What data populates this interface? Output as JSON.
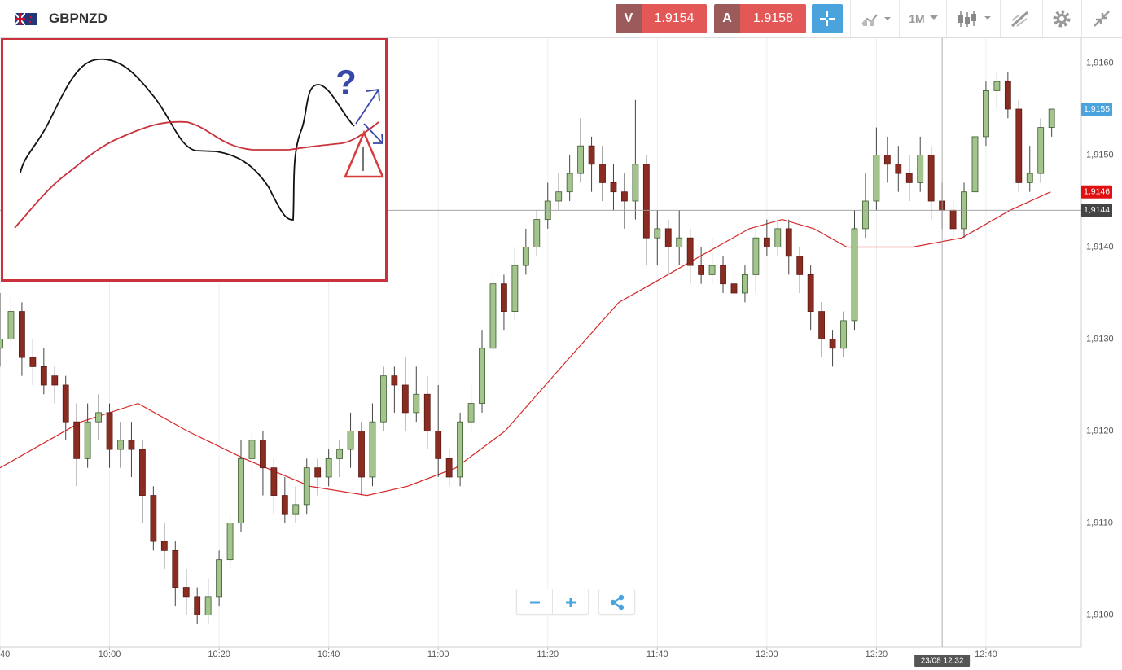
{
  "toolbar": {
    "symbol": "GBPNZD",
    "sell_label": "V",
    "sell_price": 1.9154,
    "buy_label": "A",
    "buy_price": 1.9158,
    "timeframe": "1M"
  },
  "annotation": {
    "question": "?"
  },
  "chart_data": {
    "type": "candlestick",
    "xlim": [
      0,
      98.7
    ],
    "ylim": [
      1.90965,
      1.91627
    ],
    "xticks": [
      {
        "value": 0,
        "label": "40"
      },
      {
        "value": 10,
        "label": "10:00"
      },
      {
        "value": 20,
        "label": "10:20"
      },
      {
        "value": 30,
        "label": "10:40"
      },
      {
        "value": 40,
        "label": "11:00"
      },
      {
        "value": 50,
        "label": "11:20"
      },
      {
        "value": 60,
        "label": "11:40"
      },
      {
        "value": 70,
        "label": "12:00"
      },
      {
        "value": 80,
        "label": "12:20"
      },
      {
        "value": 90,
        "label": "12:40"
      }
    ],
    "yticks": [
      {
        "value": 1.91,
        "label": "1,9100"
      },
      {
        "value": 1.911,
        "label": "1,9110"
      },
      {
        "value": 1.912,
        "label": "1,9120"
      },
      {
        "value": 1.913,
        "label": "1,9130"
      },
      {
        "value": 1.914,
        "label": "1,9140"
      },
      {
        "value": 1.915,
        "label": "1,9150"
      },
      {
        "value": 1.916,
        "label": "1,9160"
      }
    ],
    "grid": true,
    "up_color": "#a3c48c",
    "down_color": "#8b2c22",
    "candles": [
      [
        1.9129,
        1.9135,
        1.9127,
        1.913
      ],
      [
        1.913,
        1.9135,
        1.9129,
        1.9133
      ],
      [
        1.9133,
        1.9134,
        1.9126,
        1.9128
      ],
      [
        1.9128,
        1.913,
        1.9125,
        1.9127
      ],
      [
        1.9127,
        1.9129,
        1.9124,
        1.9125
      ],
      [
        1.9126,
        1.9127,
        1.9123,
        1.9125
      ],
      [
        1.9125,
        1.9126,
        1.9119,
        1.9121
      ],
      [
        1.9121,
        1.9123,
        1.9114,
        1.9117
      ],
      [
        1.9117,
        1.9123,
        1.9116,
        1.9121
      ],
      [
        1.9121,
        1.9124,
        1.9119,
        1.9122
      ],
      [
        1.9122,
        1.9123,
        1.9116,
        1.9118
      ],
      [
        1.9118,
        1.9121,
        1.9116,
        1.9119
      ],
      [
        1.9119,
        1.9121,
        1.9115,
        1.9118
      ],
      [
        1.9118,
        1.9119,
        1.911,
        1.9113
      ],
      [
        1.9113,
        1.9114,
        1.9107,
        1.9108
      ],
      [
        1.9108,
        1.911,
        1.9105,
        1.9107
      ],
      [
        1.9107,
        1.9108,
        1.9101,
        1.9103
      ],
      [
        1.9103,
        1.9105,
        1.91,
        1.9102
      ],
      [
        1.9102,
        1.9103,
        1.9099,
        1.91
      ],
      [
        1.91,
        1.9104,
        1.9099,
        1.9102
      ],
      [
        1.9102,
        1.9107,
        1.9101,
        1.9106
      ],
      [
        1.9106,
        1.9111,
        1.9105,
        1.911
      ],
      [
        1.911,
        1.9119,
        1.9109,
        1.9117
      ],
      [
        1.9117,
        1.912,
        1.9115,
        1.9119
      ],
      [
        1.9119,
        1.912,
        1.9113,
        1.9116
      ],
      [
        1.9116,
        1.9117,
        1.9111,
        1.9113
      ],
      [
        1.9113,
        1.9115,
        1.911,
        1.9111
      ],
      [
        1.9111,
        1.9114,
        1.911,
        1.9112
      ],
      [
        1.9112,
        1.9117,
        1.9111,
        1.9116
      ],
      [
        1.9116,
        1.9117,
        1.9113,
        1.9115
      ],
      [
        1.9115,
        1.9118,
        1.9114,
        1.9117
      ],
      [
        1.9117,
        1.9119,
        1.9115,
        1.9118
      ],
      [
        1.9118,
        1.9122,
        1.9116,
        1.912
      ],
      [
        1.912,
        1.9121,
        1.9113,
        1.9115
      ],
      [
        1.9115,
        1.9123,
        1.9114,
        1.9121
      ],
      [
        1.9121,
        1.9127,
        1.912,
        1.9126
      ],
      [
        1.9126,
        1.9127,
        1.9122,
        1.9125
      ],
      [
        1.9125,
        1.9128,
        1.912,
        1.9122
      ],
      [
        1.9122,
        1.9127,
        1.9121,
        1.9124
      ],
      [
        1.9124,
        1.9126,
        1.9118,
        1.912
      ],
      [
        1.912,
        1.9125,
        1.9115,
        1.9117
      ],
      [
        1.9117,
        1.9118,
        1.9114,
        1.9115
      ],
      [
        1.9115,
        1.9122,
        1.9114,
        1.9121
      ],
      [
        1.9121,
        1.9125,
        1.912,
        1.9123
      ],
      [
        1.9123,
        1.9131,
        1.9122,
        1.9129
      ],
      [
        1.9129,
        1.9137,
        1.9128,
        1.9136
      ],
      [
        1.9136,
        1.9137,
        1.9131,
        1.9133
      ],
      [
        1.9133,
        1.914,
        1.9132,
        1.9138
      ],
      [
        1.9138,
        1.9142,
        1.9137,
        1.914
      ],
      [
        1.914,
        1.9144,
        1.9139,
        1.9143
      ],
      [
        1.9143,
        1.9147,
        1.9142,
        1.9145
      ],
      [
        1.9145,
        1.9148,
        1.9144,
        1.9146
      ],
      [
        1.9146,
        1.915,
        1.9145,
        1.9148
      ],
      [
        1.9148,
        1.9154,
        1.9147,
        1.9151
      ],
      [
        1.9151,
        1.9152,
        1.9146,
        1.9149
      ],
      [
        1.9149,
        1.9151,
        1.9145,
        1.9147
      ],
      [
        1.9147,
        1.9149,
        1.9144,
        1.9146
      ],
      [
        1.9146,
        1.9148,
        1.9142,
        1.9145
      ],
      [
        1.9145,
        1.9156,
        1.9143,
        1.9149
      ],
      [
        1.9149,
        1.915,
        1.9138,
        1.9141
      ],
      [
        1.9141,
        1.9144,
        1.9138,
        1.9142
      ],
      [
        1.9142,
        1.9143,
        1.9137,
        1.914
      ],
      [
        1.914,
        1.9144,
        1.9138,
        1.9141
      ],
      [
        1.9141,
        1.9142,
        1.9136,
        1.9138
      ],
      [
        1.9138,
        1.914,
        1.9136,
        1.9137
      ],
      [
        1.9137,
        1.9141,
        1.9136,
        1.9138
      ],
      [
        1.9138,
        1.9139,
        1.9135,
        1.9136
      ],
      [
        1.9136,
        1.9138,
        1.9134,
        1.9135
      ],
      [
        1.9135,
        1.9138,
        1.9134,
        1.9137
      ],
      [
        1.9137,
        1.9142,
        1.9135,
        1.9141
      ],
      [
        1.9141,
        1.9143,
        1.9139,
        1.914
      ],
      [
        1.914,
        1.9143,
        1.9139,
        1.9142
      ],
      [
        1.9142,
        1.9143,
        1.9137,
        1.9139
      ],
      [
        1.9139,
        1.914,
        1.9135,
        1.9137
      ],
      [
        1.9137,
        1.9138,
        1.9131,
        1.9133
      ],
      [
        1.9133,
        1.9134,
        1.9128,
        1.913
      ],
      [
        1.913,
        1.9131,
        1.9127,
        1.9129
      ],
      [
        1.9129,
        1.9133,
        1.9128,
        1.9132
      ],
      [
        1.9132,
        1.9144,
        1.9131,
        1.9142
      ],
      [
        1.9142,
        1.9148,
        1.9141,
        1.9145
      ],
      [
        1.9145,
        1.9153,
        1.9144,
        1.915
      ],
      [
        1.915,
        1.9152,
        1.9147,
        1.9149
      ],
      [
        1.9149,
        1.9151,
        1.9146,
        1.9148
      ],
      [
        1.9148,
        1.915,
        1.9145,
        1.9147
      ],
      [
        1.9147,
        1.9152,
        1.9146,
        1.915
      ],
      [
        1.915,
        1.9151,
        1.9143,
        1.9145
      ],
      [
        1.9145,
        1.9147,
        1.9142,
        1.9144
      ],
      [
        1.9144,
        1.9145,
        1.9141,
        1.9142
      ],
      [
        1.9142,
        1.9147,
        1.9141,
        1.9146
      ],
      [
        1.9146,
        1.9153,
        1.9145,
        1.9152
      ],
      [
        1.9152,
        1.9158,
        1.9151,
        1.9157
      ],
      [
        1.9157,
        1.9159,
        1.9155,
        1.9158
      ],
      [
        1.9158,
        1.9159,
        1.9154,
        1.9155
      ],
      [
        1.9155,
        1.9156,
        1.9146,
        1.9147
      ],
      [
        1.9147,
        1.9151,
        1.9146,
        1.9148
      ],
      [
        1.9148,
        1.9154,
        1.9147,
        1.9153
      ],
      [
        1.9153,
        1.9155,
        1.9152,
        1.9155
      ]
    ],
    "ma": {
      "color": "#d42a2a",
      "x": [
        0,
        7.4,
        12.6,
        17.1,
        22.3,
        28.3,
        33.5,
        37.2,
        41.6,
        46.1,
        52,
        56.5,
        59.5,
        63.9,
        68.4,
        71.4,
        74.3,
        77.3,
        80.3,
        83.3,
        87.8,
        92.2,
        95.9
      ],
      "values": [
        1.9116,
        1.9121,
        1.9123,
        1.912,
        1.9117,
        1.9114,
        1.9113,
        1.9114,
        1.9116,
        1.912,
        1.9128,
        1.9134,
        1.9136,
        1.9139,
        1.9142,
        1.9143,
        1.9142,
        1.914,
        1.914,
        1.914,
        1.9141,
        1.9144,
        1.9146
      ]
    },
    "price_labels": [
      {
        "value": 1.9155,
        "label": "1,9155",
        "color": "#4aa3dc"
      },
      {
        "value": 1.9146,
        "label": "1,9146",
        "color": "#e01010"
      },
      {
        "value": 1.9144,
        "label": "1,9144",
        "color": "#444444"
      }
    ],
    "crosshair": {
      "x": {
        "value": 86,
        "label": "23/08 12:32"
      },
      "y": {
        "value": 1.9144,
        "label": "1,9144"
      },
      "color": "#9a9a9a"
    }
  }
}
